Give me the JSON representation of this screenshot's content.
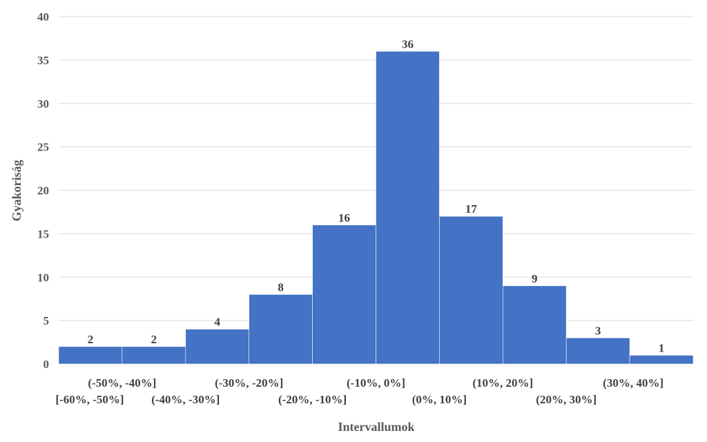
{
  "chart_data": {
    "type": "bar",
    "categories": [
      "[-60%, -50%]",
      "(-50%, -40%]",
      "(-40%, -30%]",
      "(-30%, -20%]",
      "(-20%, -10%]",
      "(-10%, 0%]",
      "(0%, 10%]",
      "(10%, 20%]",
      "(20%, 30%]",
      "(30%, 40%]"
    ],
    "values": [
      2,
      2,
      4,
      8,
      16,
      36,
      17,
      9,
      3,
      1
    ],
    "xlabel": "Intervallumok",
    "ylabel": "Gyakoriság",
    "ylim": [
      0,
      40
    ],
    "yticks": [
      0,
      5,
      10,
      15,
      20,
      25,
      30,
      35,
      40
    ],
    "grid": true,
    "bar_color": "#4472c4",
    "data_labels": true
  }
}
